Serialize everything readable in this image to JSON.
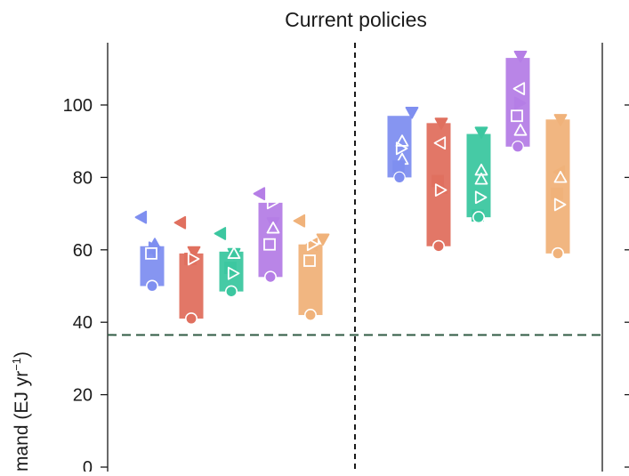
{
  "chart_data": {
    "type": "scatter",
    "title": "Current policies",
    "ylabel": "mand (EJ yr",
    "ylabel_superscript": "−1",
    "ylabel_close": ")",
    "ylim": [
      0,
      115
    ],
    "yticks": [
      "0",
      "20",
      "40",
      "60",
      "80",
      "100"
    ],
    "grid": false,
    "reference_line": {
      "value": 36.5,
      "style": "dashed",
      "color": "#2f5a43"
    },
    "divider": {
      "style": "dashed",
      "color": "#1a1a1a"
    },
    "groups": [
      {
        "panel": "left",
        "color": "#7f8ff0",
        "range": [
          50,
          61
        ],
        "markers": [
          {
            "shape": "triangle-left",
            "filled": true,
            "y": 69
          },
          {
            "shape": "triangle-up",
            "filled": true,
            "y": 61.5
          },
          {
            "shape": "triangle-down",
            "filled": true,
            "y": 59.5
          },
          {
            "shape": "triangle-right",
            "filled": true,
            "y": 60.5
          },
          {
            "shape": "square",
            "filled": false,
            "y": 59
          },
          {
            "shape": "circle",
            "filled": false,
            "y": 50
          }
        ]
      },
      {
        "panel": "left",
        "color": "#e0705f",
        "range": [
          41,
          59
        ],
        "markers": [
          {
            "shape": "triangle-left",
            "filled": true,
            "y": 67.5
          },
          {
            "shape": "triangle-down",
            "filled": true,
            "y": 59.5
          },
          {
            "shape": "square",
            "filled": true,
            "y": 57.5
          },
          {
            "shape": "triangle-right",
            "filled": false,
            "y": 57.5
          },
          {
            "shape": "circle",
            "filled": false,
            "y": 41
          }
        ]
      },
      {
        "panel": "left",
        "color": "#3cc7a0",
        "range": [
          48.5,
          59.5
        ],
        "markers": [
          {
            "shape": "triangle-left",
            "filled": true,
            "y": 64.5
          },
          {
            "shape": "triangle-down",
            "filled": true,
            "y": 59
          },
          {
            "shape": "square",
            "filled": true,
            "y": 55
          },
          {
            "shape": "triangle-up",
            "filled": false,
            "y": 59
          },
          {
            "shape": "triangle-right",
            "filled": false,
            "y": 53.5
          },
          {
            "shape": "circle",
            "filled": false,
            "y": 48.5
          }
        ]
      },
      {
        "panel": "left",
        "color": "#b57ee6",
        "range": [
          52.5,
          73
        ],
        "markers": [
          {
            "shape": "triangle-left",
            "filled": true,
            "y": 75.5
          },
          {
            "shape": "triangle-right",
            "filled": false,
            "y": 73
          },
          {
            "shape": "triangle-down",
            "filled": true,
            "y": 67.5
          },
          {
            "shape": "triangle-up",
            "filled": false,
            "y": 66
          },
          {
            "shape": "square",
            "filled": false,
            "y": 61.5
          },
          {
            "shape": "circle",
            "filled": false,
            "y": 52.5
          }
        ]
      },
      {
        "panel": "left",
        "color": "#f0b27a",
        "range": [
          42,
          61.5
        ],
        "markers": [
          {
            "shape": "triangle-left",
            "filled": true,
            "y": 68
          },
          {
            "shape": "triangle-down",
            "filled": true,
            "y": 63
          },
          {
            "shape": "triangle-left",
            "filled": true,
            "y": 61.5
          },
          {
            "shape": "triangle-right",
            "filled": false,
            "y": 61.5
          },
          {
            "shape": "square",
            "filled": false,
            "y": 57
          },
          {
            "shape": "circle",
            "filled": false,
            "y": 42
          }
        ]
      },
      {
        "panel": "right",
        "color": "#7f8ff0",
        "range": [
          80,
          97
        ],
        "markers": [
          {
            "shape": "triangle-down",
            "filled": true,
            "y": 98
          },
          {
            "shape": "triangle-up",
            "filled": false,
            "y": 90
          },
          {
            "shape": "triangle-right",
            "filled": false,
            "y": 88
          },
          {
            "shape": "triangle-up",
            "filled": false,
            "y": 85
          },
          {
            "shape": "square",
            "filled": true,
            "y": 83
          },
          {
            "shape": "circle",
            "filled": true,
            "y": 80
          }
        ]
      },
      {
        "panel": "right",
        "color": "#e0705f",
        "range": [
          61,
          95
        ],
        "markers": [
          {
            "shape": "triangle-down",
            "filled": true,
            "y": 95
          },
          {
            "shape": "triangle-left",
            "filled": false,
            "y": 89.5
          },
          {
            "shape": "square",
            "filled": true,
            "y": 79
          },
          {
            "shape": "triangle-up",
            "filled": true,
            "y": 77
          },
          {
            "shape": "triangle-right",
            "filled": false,
            "y": 76.5
          },
          {
            "shape": "circle",
            "filled": false,
            "y": 61
          }
        ]
      },
      {
        "panel": "right",
        "color": "#3cc7a0",
        "range": [
          69,
          92
        ],
        "markers": [
          {
            "shape": "triangle-down",
            "filled": true,
            "y": 92.5
          },
          {
            "shape": "triangle-up",
            "filled": false,
            "y": 82
          },
          {
            "shape": "triangle-up",
            "filled": false,
            "y": 79.5
          },
          {
            "shape": "triangle-right",
            "filled": false,
            "y": 74.5
          },
          {
            "shape": "square",
            "filled": true,
            "y": 69.5
          },
          {
            "shape": "circle",
            "filled": false,
            "y": 69
          }
        ]
      },
      {
        "panel": "right",
        "color": "#b57ee6",
        "range": [
          88.5,
          113
        ],
        "markers": [
          {
            "shape": "triangle-down",
            "filled": true,
            "y": 113.5
          },
          {
            "shape": "triangle-left",
            "filled": false,
            "y": 104.5
          },
          {
            "shape": "triangle-right",
            "filled": true,
            "y": 100.5
          },
          {
            "shape": "square",
            "filled": false,
            "y": 97
          },
          {
            "shape": "triangle-up",
            "filled": false,
            "y": 93
          },
          {
            "shape": "circle",
            "filled": true,
            "y": 88.5
          }
        ]
      },
      {
        "panel": "right",
        "color": "#f0b27a",
        "range": [
          59,
          96
        ],
        "markers": [
          {
            "shape": "triangle-down",
            "filled": true,
            "y": 96
          },
          {
            "shape": "triangle-left",
            "filled": true,
            "y": 81.5
          },
          {
            "shape": "triangle-up",
            "filled": false,
            "y": 80
          },
          {
            "shape": "square",
            "filled": true,
            "y": 75.5
          },
          {
            "shape": "triangle-right",
            "filled": false,
            "y": 72.5
          },
          {
            "shape": "circle",
            "filled": false,
            "y": 59
          }
        ]
      }
    ]
  }
}
